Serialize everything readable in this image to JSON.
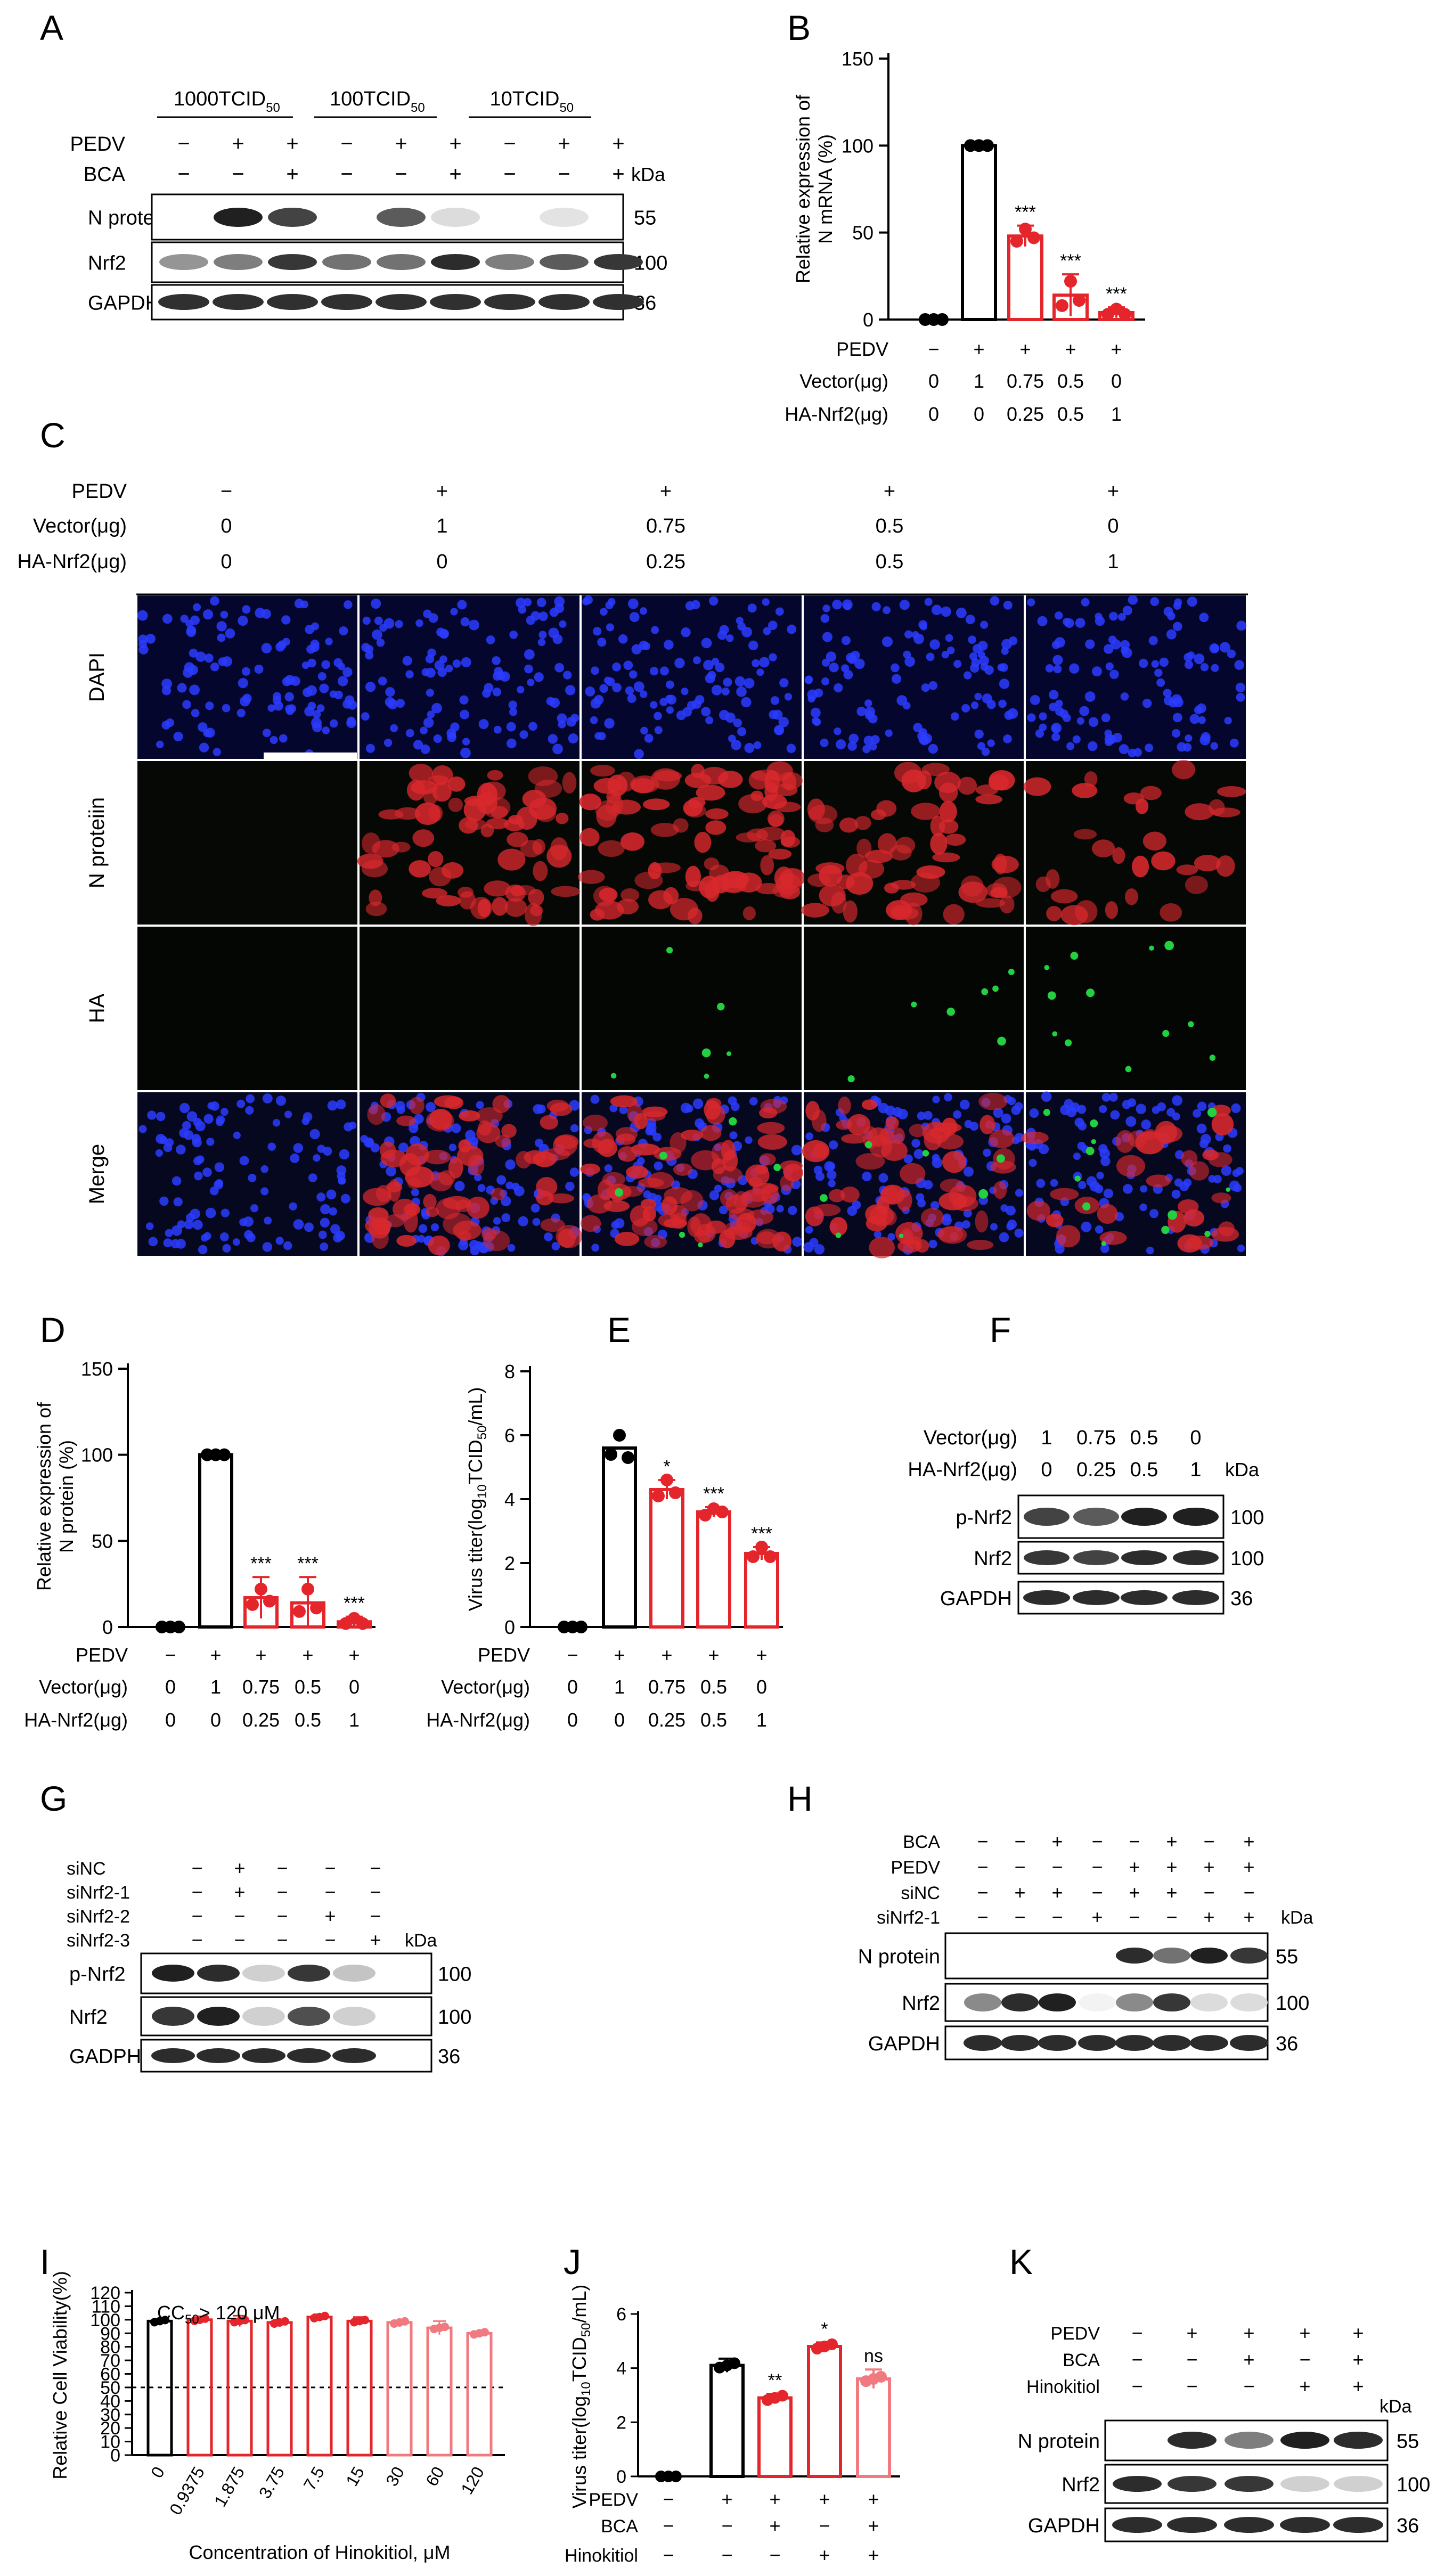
{
  "colors": {
    "black": "#000000",
    "red": "#e4262c",
    "pink": "#f07a7f",
    "blue": "#1f2bd6",
    "nuc": "#2b3cff",
    "nred": "#d8282d",
    "hagreen": "#22d040"
  },
  "panels": {
    "A": "A",
    "B": "B",
    "C": "C",
    "D": "D",
    "E": "E",
    "F": "F",
    "G": "G",
    "H": "H",
    "I": "I",
    "J": "J",
    "K": "K"
  },
  "common": {
    "pedv": "PEDV",
    "bca": "BCA",
    "vector": "Vector(μg)",
    "ha_nrf2": "HA-Nrf2(μg)",
    "kda": "kDa",
    "plus": "+",
    "minus": "−"
  },
  "A": {
    "groups": [
      "1000TCID",
      "100TCID",
      "10TCID"
    ],
    "sub50": "50",
    "pedv": [
      "−",
      "+",
      "+",
      "−",
      "+",
      "+",
      "−",
      "+",
      "+"
    ],
    "bca": [
      "−",
      "−",
      "+",
      "−",
      "−",
      "+",
      "−",
      "−",
      "+"
    ],
    "bands": [
      "N protein",
      "Nrf2",
      "GAPDH"
    ],
    "kda": [
      "55",
      "100",
      "36"
    ],
    "n_intensity": [
      0,
      0.95,
      0.8,
      0,
      0.7,
      0.15,
      0,
      0.12,
      0
    ],
    "nrf2_intensity": [
      0.45,
      0.55,
      0.85,
      0.6,
      0.6,
      0.9,
      0.55,
      0.7,
      0.85
    ]
  },
  "rowvals": {
    "pedv": [
      "−",
      "+",
      "+",
      "+",
      "+"
    ],
    "vector": [
      "0",
      "1",
      "0.75",
      "0.5",
      "0"
    ],
    "ha": [
      "0",
      "0",
      "0.25",
      "0.5",
      "1"
    ]
  },
  "B": {
    "ylabel1": "Relative expression of",
    "ylabel2": "N mRNA (%)",
    "ticks": [
      "0",
      "50",
      "100",
      "150"
    ],
    "chart_data": {
      "type": "bar",
      "categories": [
        "1",
        "2",
        "3",
        "4",
        "5"
      ],
      "values": [
        0,
        100,
        48,
        14,
        4
      ],
      "ylim": [
        0,
        150
      ],
      "stars": [
        "",
        "",
        "***",
        "***",
        "***"
      ]
    }
  },
  "C": {
    "rows": [
      "DAPI",
      "N proteiin",
      "HA",
      "Merge"
    ]
  },
  "D": {
    "ylabel1": "Relative expression of",
    "ylabel2": "N protein (%)",
    "ticks": [
      "0",
      "50",
      "100",
      "150"
    ],
    "chart_data": {
      "type": "bar",
      "categories": [
        "1",
        "2",
        "3",
        "4",
        "5"
      ],
      "values": [
        0,
        100,
        17,
        14,
        3
      ],
      "ylim": [
        0,
        150
      ],
      "stars": [
        "",
        "",
        "***",
        "***",
        "***"
      ]
    }
  },
  "E": {
    "ylabel": "Virus titer(log10TCID50/mL)",
    "ylabel_a": "Virus titer(log",
    "ylabel_b": "10",
    "ylabel_c": "TCID",
    "ylabel_d": "50",
    "ylabel_e": "/mL)",
    "ticks": [
      "0",
      "2",
      "4",
      "6",
      "8"
    ],
    "chart_data": {
      "type": "bar",
      "categories": [
        "1",
        "2",
        "3",
        "4",
        "5"
      ],
      "values": [
        0,
        5.6,
        4.3,
        3.6,
        2.3
      ],
      "ylim": [
        0,
        8
      ],
      "stars": [
        "",
        "",
        "*",
        "***",
        "***"
      ]
    }
  },
  "F": {
    "vector": [
      "1",
      "0.75",
      "0.5",
      "0"
    ],
    "ha": [
      "0",
      "0.25",
      "0.5",
      "1"
    ],
    "bands": [
      "p-Nrf2",
      "Nrf2",
      "GAPDH"
    ],
    "kda": [
      "100",
      "100",
      "36"
    ]
  },
  "G": {
    "rows": [
      "siNC",
      "siNrf2-1",
      "siNrf2-2",
      "siNrf2-3"
    ],
    "signs": [
      [
        "−",
        "+",
        "−",
        "−",
        "−"
      ],
      [
        "−",
        "+",
        "−",
        "−",
        "−"
      ],
      [
        "−",
        "−",
        "−",
        "+",
        "−"
      ],
      [
        "−",
        "−",
        "−",
        "−",
        "+"
      ]
    ],
    "bands": [
      "p-Nrf2",
      "Nrf2",
      "GADPH"
    ],
    "kda": [
      "100",
      "100",
      "36"
    ]
  },
  "H": {
    "rows": [
      "BCA",
      "PEDV",
      "siNC",
      "siNrf2-1"
    ],
    "signs": [
      [
        "−",
        "−",
        "+",
        "−",
        "−",
        "+",
        "−",
        "+"
      ],
      [
        "−",
        "−",
        "−",
        "−",
        "+",
        "+",
        "+",
        "+"
      ],
      [
        "−",
        "+",
        "+",
        "−",
        "+",
        "+",
        "−",
        "−"
      ],
      [
        "−",
        "−",
        "−",
        "+",
        "−",
        "−",
        "+",
        "+"
      ]
    ],
    "bands": [
      "N protein",
      "Nrf2",
      "GAPDH"
    ],
    "kda": [
      "55",
      "100",
      "36"
    ]
  },
  "I": {
    "ylabel": "Relative Cell Viability(%)",
    "xlabel": "Concentration of Hinokitiol, μM",
    "cc50": "CC50>120 μM",
    "cc_a": "CC",
    "cc_b": "50",
    "cc_c": "> 120 μM",
    "ticks": [
      "0",
      "10",
      "20",
      "30",
      "40",
      "50",
      "60",
      "70",
      "80",
      "90",
      "100",
      "110",
      "120"
    ],
    "chart_data": {
      "type": "bar",
      "categories": [
        "0",
        "0.9375",
        "1.875",
        "3.75",
        "7.5",
        "15",
        "30",
        "60",
        "120"
      ],
      "values": [
        99,
        100,
        99,
        98,
        102,
        99,
        98,
        94,
        90
      ],
      "ylim": [
        0,
        120
      ]
    }
  },
  "J": {
    "ylabel_a": "Virus titer(log",
    "ylabel_b": "10",
    "ylabel_c": "TCID",
    "ylabel_d": "50",
    "ylabel_e": "/mL)",
    "ticks": [
      "0",
      "2",
      "4",
      "6"
    ],
    "rows": [
      "PEDV",
      "BCA",
      "Hinokitiol"
    ],
    "signs": [
      [
        "−",
        "+",
        "+",
        "+",
        "+"
      ],
      [
        "−",
        "−",
        "+",
        "−",
        "+"
      ],
      [
        "−",
        "−",
        "−",
        "+",
        "+"
      ]
    ],
    "chart_data": {
      "type": "bar",
      "categories": [
        "1",
        "2",
        "3",
        "4",
        "5"
      ],
      "values": [
        0,
        4.1,
        2.9,
        4.8,
        3.6
      ],
      "ylim": [
        0,
        6
      ],
      "stars": [
        "",
        "",
        "**",
        "*",
        "ns"
      ]
    }
  },
  "K": {
    "rows": [
      "PEDV",
      "BCA",
      "Hinokitiol"
    ],
    "signs": [
      [
        "−",
        "+",
        "+",
        "+",
        "+"
      ],
      [
        "−",
        "−",
        "+",
        "−",
        "+"
      ],
      [
        "−",
        "−",
        "−",
        "+",
        "+"
      ]
    ],
    "bands": [
      "N protein",
      "Nrf2",
      "GAPDH"
    ],
    "kda": [
      "55",
      "100",
      "36"
    ]
  }
}
